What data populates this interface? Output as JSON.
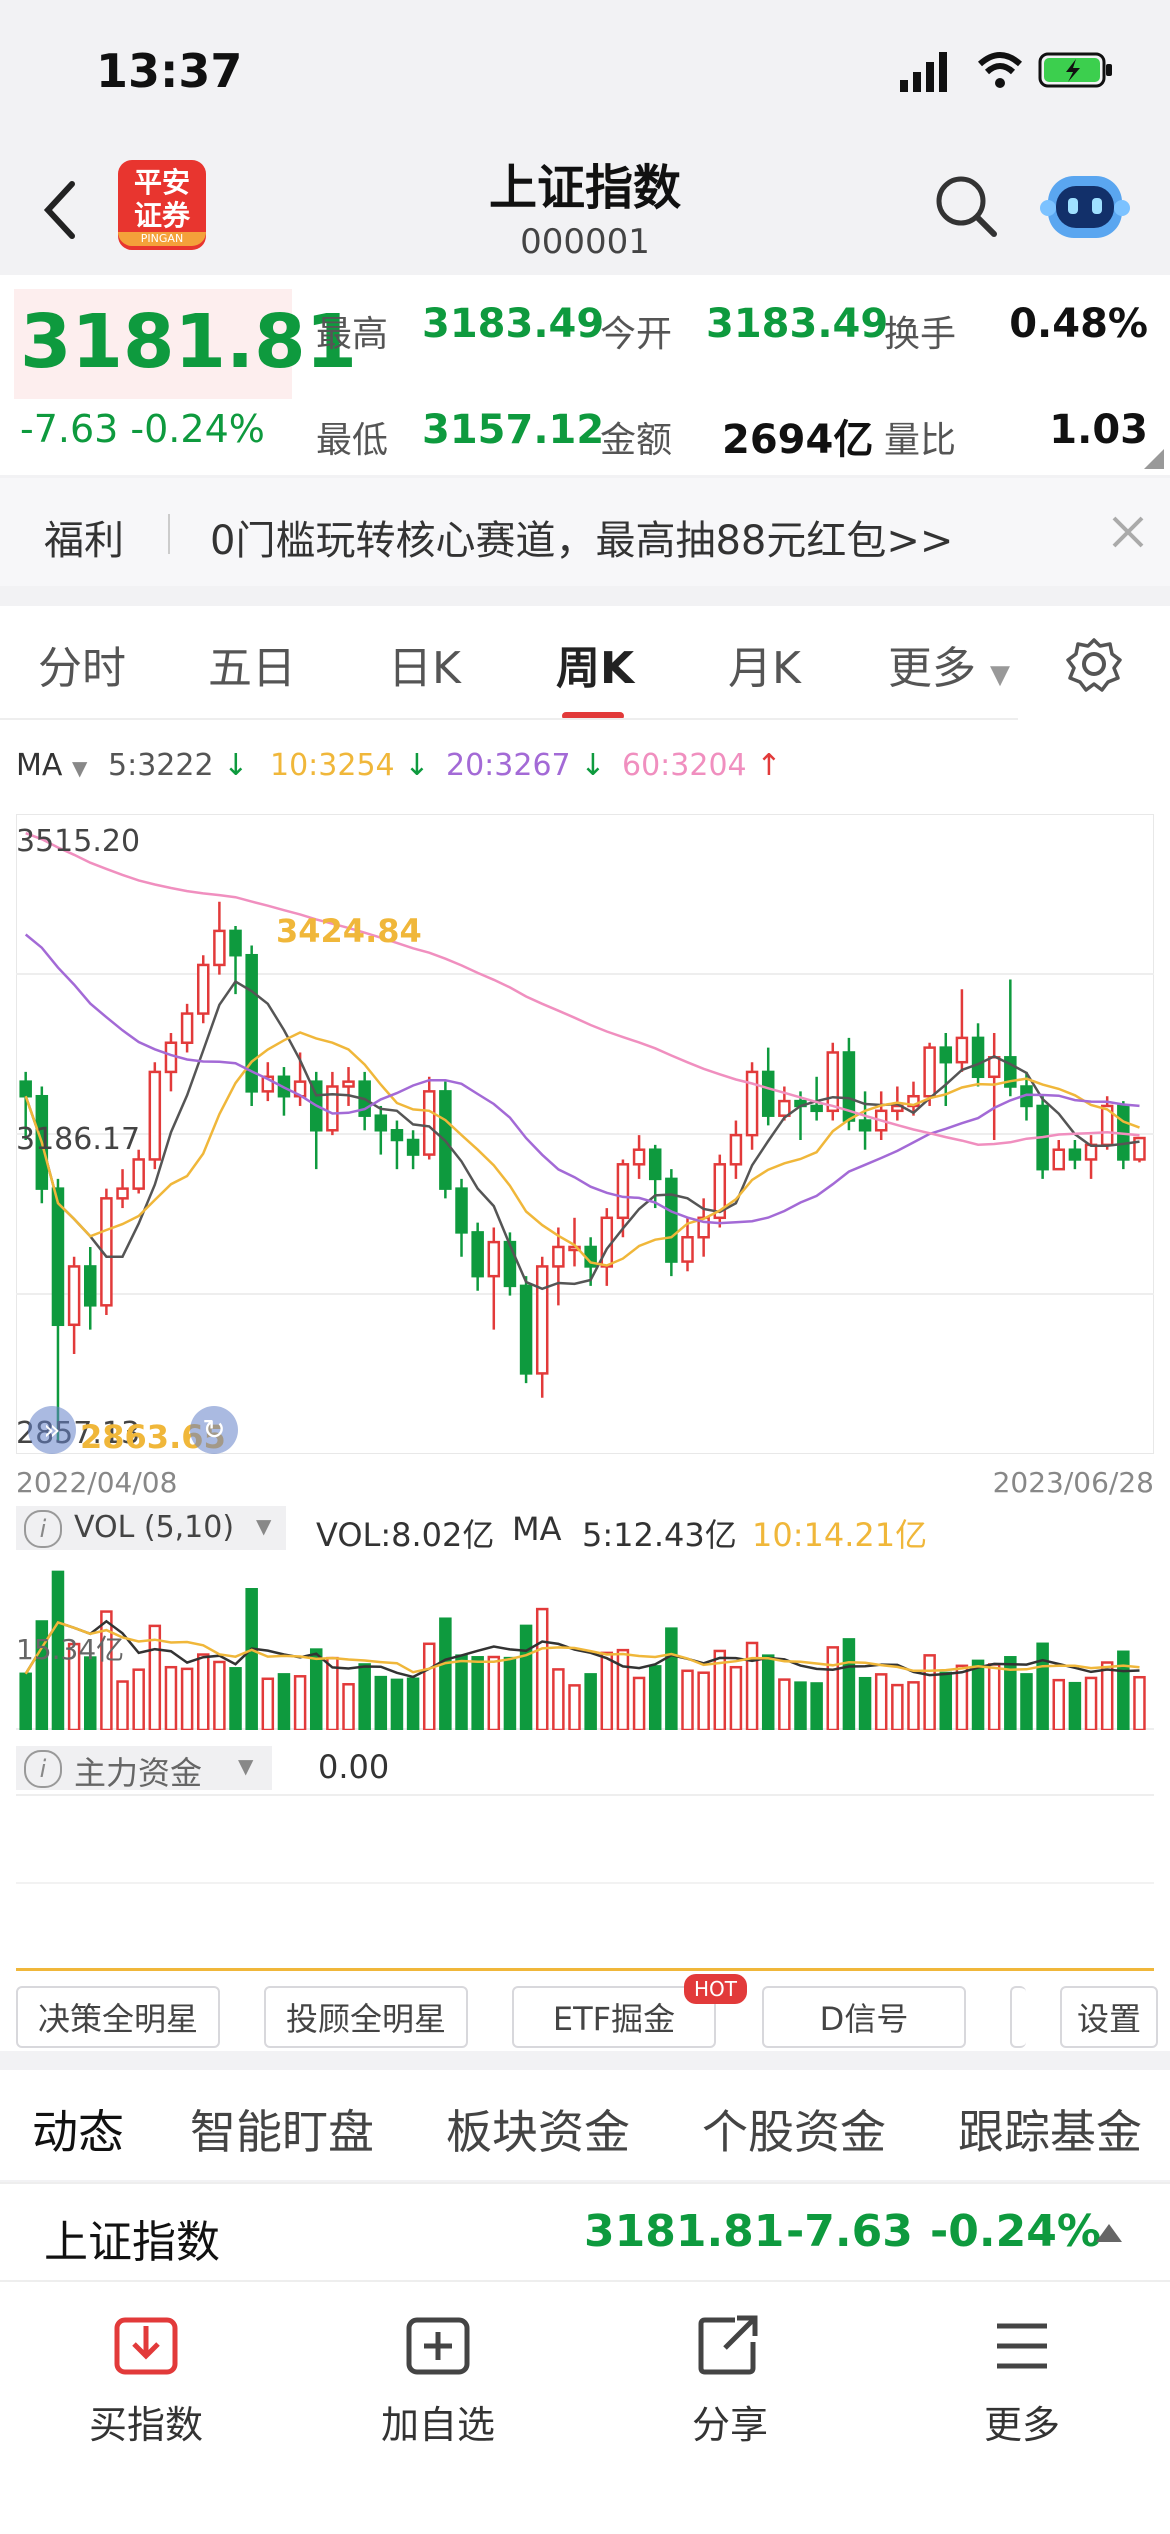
{
  "status_bar": {
    "time": "13:37"
  },
  "header": {
    "title": "上证指数",
    "code": "000001",
    "logo_top": "平安",
    "logo_bottom": "证券",
    "logo_sub": "PINGAN"
  },
  "quote": {
    "price": "3181.81",
    "change": "-7.63",
    "change_pct": "-0.24%",
    "high_label": "最高",
    "high": "3183.49",
    "open_label": "今开",
    "open": "3183.49",
    "turnover_label": "换手",
    "turnover": "0.48%",
    "low_label": "最低",
    "low": "3157.12",
    "amount_label": "金额",
    "amount": "2694亿",
    "ratio_label": "量比",
    "ratio": "1.03"
  },
  "promo": {
    "tag": "福利",
    "text": "0门槛玩转核心赛道，最高抽88元红包>>"
  },
  "chart_tabs": [
    "分时",
    "五日",
    "日K",
    "周K",
    "月K",
    "更多"
  ],
  "active_tab": 3,
  "ma_legend": {
    "label": "MA",
    "ma5": "5:3222",
    "ma10": "10:3254",
    "ma20": "20:3267",
    "ma60": "60:3204"
  },
  "chart_data": {
    "type": "candlestick",
    "y_top_label": "3515.20",
    "y_mid_label": "3186.17",
    "y_bottom_label": "2857.13",
    "ylim": [
      2857.13,
      3515.2
    ],
    "high_annotation": "3424.84",
    "low_annotation": "2863.65",
    "x_start": "2022/04/08",
    "x_end": "2023/06/28",
    "candles": [
      [
        3240,
        3225,
        3250,
        3180
      ],
      [
        3225,
        3130,
        3235,
        3115
      ],
      [
        3130,
        2990,
        3140,
        2870
      ],
      [
        2990,
        3050,
        3060,
        2960
      ],
      [
        3050,
        3010,
        3070,
        2985
      ],
      [
        3010,
        3120,
        3130,
        3000
      ],
      [
        3120,
        3130,
        3150,
        3110
      ],
      [
        3130,
        3160,
        3170,
        3125
      ],
      [
        3160,
        3250,
        3260,
        3150
      ],
      [
        3250,
        3280,
        3290,
        3230
      ],
      [
        3280,
        3310,
        3320,
        3270
      ],
      [
        3310,
        3360,
        3370,
        3300
      ],
      [
        3360,
        3395,
        3425,
        3350
      ],
      [
        3395,
        3370,
        3400,
        3330
      ],
      [
        3370,
        3230,
        3380,
        3215
      ],
      [
        3230,
        3245,
        3260,
        3220
      ],
      [
        3245,
        3225,
        3255,
        3205
      ],
      [
        3225,
        3240,
        3270,
        3215
      ],
      [
        3240,
        3190,
        3250,
        3150
      ],
      [
        3190,
        3235,
        3250,
        3185
      ],
      [
        3235,
        3240,
        3255,
        3215
      ],
      [
        3240,
        3205,
        3250,
        3190
      ],
      [
        3205,
        3190,
        3215,
        3165
      ],
      [
        3190,
        3180,
        3200,
        3150
      ],
      [
        3180,
        3165,
        3190,
        3150
      ],
      [
        3165,
        3230,
        3245,
        3160
      ],
      [
        3230,
        3130,
        3240,
        3120
      ],
      [
        3130,
        3085,
        3140,
        3060
      ],
      [
        3085,
        3040,
        3095,
        3025
      ],
      [
        3040,
        3075,
        3090,
        2985
      ],
      [
        3075,
        3030,
        3085,
        3020
      ],
      [
        3030,
        2940,
        3040,
        2930
      ],
      [
        2940,
        3050,
        3060,
        2915
      ],
      [
        3050,
        3070,
        3090,
        3010
      ],
      [
        3070,
        3070,
        3100,
        3050
      ],
      [
        3070,
        3050,
        3080,
        3030
      ],
      [
        3050,
        3100,
        3110,
        3030
      ],
      [
        3100,
        3155,
        3160,
        3080
      ],
      [
        3155,
        3170,
        3185,
        3140
      ],
      [
        3170,
        3140,
        3175,
        3110
      ],
      [
        3140,
        3055,
        3150,
        3040
      ],
      [
        3055,
        3080,
        3100,
        3045
      ],
      [
        3080,
        3100,
        3120,
        3060
      ],
      [
        3100,
        3155,
        3165,
        3090
      ],
      [
        3155,
        3185,
        3200,
        3140
      ],
      [
        3185,
        3250,
        3260,
        3170
      ],
      [
        3250,
        3205,
        3275,
        3195
      ],
      [
        3205,
        3220,
        3235,
        3200
      ],
      [
        3220,
        3215,
        3230,
        3180
      ],
      [
        3215,
        3210,
        3245,
        3200
      ],
      [
        3210,
        3270,
        3280,
        3200
      ],
      [
        3270,
        3200,
        3285,
        3190
      ],
      [
        3200,
        3190,
        3230,
        3170
      ],
      [
        3190,
        3210,
        3230,
        3180
      ],
      [
        3210,
        3215,
        3235,
        3200
      ],
      [
        3215,
        3225,
        3240,
        3205
      ],
      [
        3225,
        3275,
        3280,
        3215
      ],
      [
        3275,
        3260,
        3290,
        3215
      ],
      [
        3260,
        3285,
        3335,
        3250
      ],
      [
        3285,
        3245,
        3300,
        3235
      ],
      [
        3245,
        3265,
        3290,
        3180
      ],
      [
        3265,
        3235,
        3345,
        3225
      ],
      [
        3235,
        3215,
        3250,
        3200
      ],
      [
        3215,
        3150,
        3225,
        3140
      ],
      [
        3150,
        3170,
        3180,
        3165
      ],
      [
        3170,
        3160,
        3180,
        3150
      ],
      [
        3160,
        3175,
        3185,
        3140
      ],
      [
        3175,
        3215,
        3225,
        3170
      ],
      [
        3215,
        3160,
        3220,
        3150
      ],
      [
        3160,
        3182,
        3183,
        3157
      ]
    ],
    "volume_label": "VOL (5,10)",
    "volume_value": "VOL:8.02亿",
    "volume_ma_label": "MA",
    "volume_ma5": "5:12.43亿",
    "volume_ma10": "10:14.21亿",
    "volume_axis_label": "15.34亿"
  },
  "main_fund": {
    "label": "主力资金",
    "value": "0.00"
  },
  "tools": [
    "决策全明星",
    "投顾全明星",
    "ETF掘金",
    "D信号",
    "设置"
  ],
  "hot_badge": "HOT",
  "info_tabs": [
    "动态",
    "智能盯盘",
    "板块资金",
    "个股资金",
    "跟踪基金"
  ],
  "ticker": {
    "name": "上证指数",
    "price": "3181.81",
    "change": "-7.63",
    "pct": "-0.24%"
  },
  "bottom_nav": [
    "买指数",
    "加自选",
    "分享",
    "更多"
  ],
  "colors": {
    "up": "#e23a3a",
    "down": "#0e9a3e",
    "ma5": "#555555",
    "ma10": "#f0b73a",
    "ma20": "#a36ad6",
    "ma60": "#f08fbf"
  }
}
